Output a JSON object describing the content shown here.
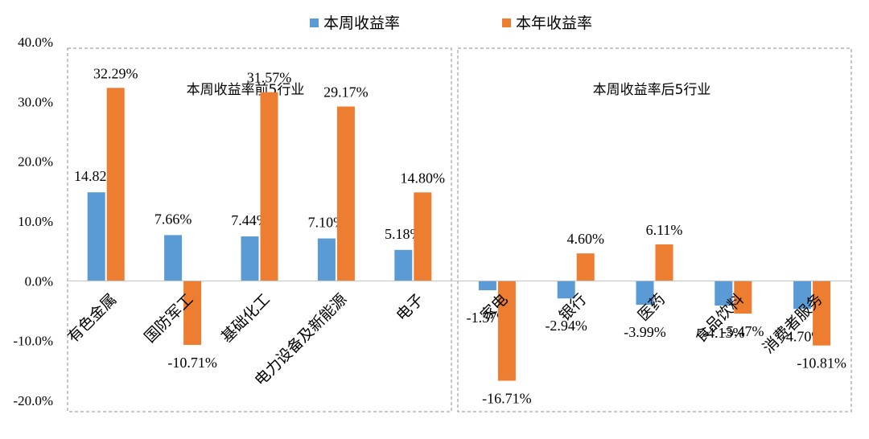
{
  "chart_data": {
    "type": "bar",
    "legend_position": "top-center",
    "y_axis": {
      "ylim": [
        -20,
        40
      ],
      "ticks": [
        -20,
        -10,
        0,
        10,
        20,
        30,
        40
      ],
      "tick_labels": [
        "-20.0%",
        "-10.0%",
        "0.0%",
        "10.0%",
        "20.0%",
        "30.0%",
        "40.0%"
      ]
    },
    "series": [
      {
        "name": "本周收益率",
        "color": "#5B9BD5"
      },
      {
        "name": "本年收益率",
        "color": "#ED7D31"
      }
    ],
    "panels": [
      {
        "title": "本周收益率前5行业",
        "categories": [
          "有色金属",
          "国防军工",
          "基础化工",
          "电力设备及新能源",
          "电子"
        ],
        "weekly": [
          14.82,
          7.66,
          7.44,
          7.1,
          5.18
        ],
        "weekly_labels": [
          "14.82%",
          "7.66%",
          "7.44%",
          "7.10%",
          "5.18%"
        ],
        "ytd": [
          32.29,
          -10.71,
          31.57,
          29.17,
          14.8
        ],
        "ytd_labels": [
          "32.29%",
          "-10.71%",
          "31.57%",
          "29.17%",
          "14.80%"
        ]
      },
      {
        "title": "本周收益率后5行业",
        "categories": [
          "家电",
          "银行",
          "医药",
          "食品饮料",
          "消费者服务"
        ],
        "weekly": [
          -1.57,
          -2.94,
          -3.99,
          -4.13,
          -4.7
        ],
        "weekly_labels": [
          "-1.57%",
          "-2.94%",
          "-3.99%",
          "-4.13%",
          "-4.70%"
        ],
        "ytd": [
          -16.71,
          4.6,
          6.11,
          -5.47,
          -10.81
        ],
        "ytd_labels": [
          "-16.71%",
          "4.60%",
          "6.11%",
          "-5.47%",
          "-10.81%"
        ]
      }
    ]
  }
}
